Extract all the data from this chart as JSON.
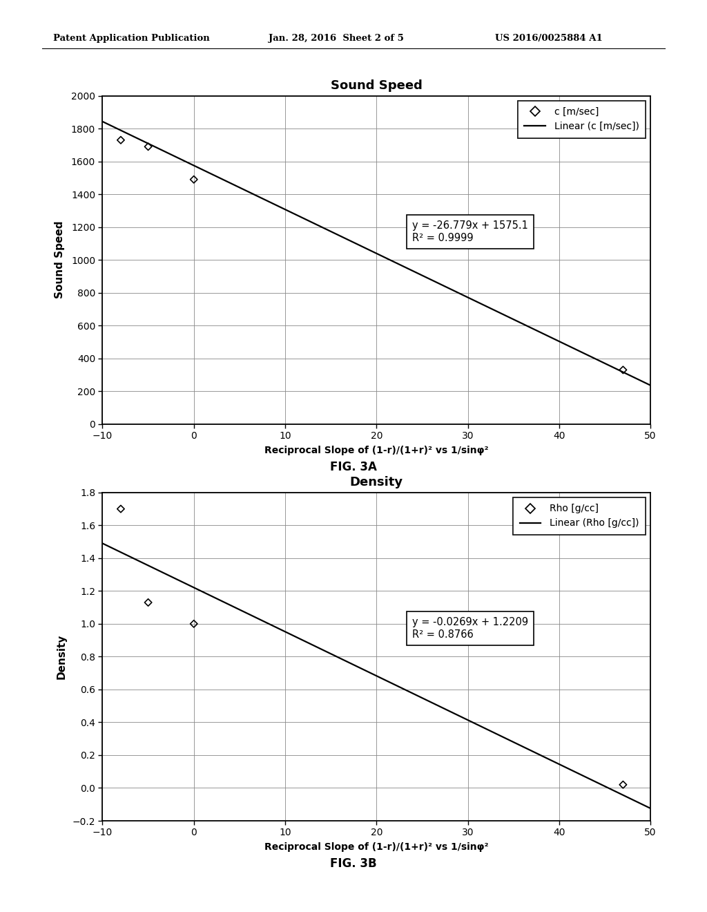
{
  "header_left": "Patent Application Publication",
  "header_mid": "Jan. 28, 2016  Sheet 2 of 5",
  "header_right": "US 2016/0025884 A1",
  "fig3a": {
    "title": "Sound Speed",
    "ylabel": "Sound Speed",
    "xlabel": "Reciprocal Slope of (1-r)/(1+r)² vs 1/sinφ²",
    "xlim": [
      -10,
      50
    ],
    "ylim": [
      0,
      2000
    ],
    "yticks": [
      0,
      200,
      400,
      600,
      800,
      1000,
      1200,
      1400,
      1600,
      1800,
      2000
    ],
    "xticks": [
      -10,
      0,
      10,
      20,
      30,
      40,
      50
    ],
    "scatter_x": [
      -8,
      -5,
      0,
      47
    ],
    "scatter_y": [
      1730,
      1690,
      1490,
      330
    ],
    "line_slope": -26.779,
    "line_intercept": 1575.1,
    "legend_label_scatter": "c [m/sec]",
    "legend_label_line": "Linear (c [m/sec])",
    "equation": "y = -26.779x + 1575.1",
    "r2": "R² = 0.9999",
    "caption": "FIG. 3A"
  },
  "fig3b": {
    "title": "Density",
    "ylabel": "Density",
    "xlabel": "Reciprocal Slope of (1-r)/(1+r)² vs 1/sinφ²",
    "xlim": [
      -10,
      50
    ],
    "ylim": [
      -0.2,
      1.8
    ],
    "yticks": [
      -0.2,
      0.0,
      0.2,
      0.4,
      0.6,
      0.8,
      1.0,
      1.2,
      1.4,
      1.6,
      1.8
    ],
    "xticks": [
      -10,
      0,
      10,
      20,
      30,
      40,
      50
    ],
    "scatter_x": [
      -8,
      -5,
      0,
      47
    ],
    "scatter_y": [
      1.7,
      1.13,
      1.0,
      0.02
    ],
    "line_slope": -0.0269,
    "line_intercept": 1.2209,
    "legend_label_scatter": "Rho [g/cc]",
    "legend_label_line": "Linear (Rho [g/cc])",
    "equation": "y = -0.0269x + 1.2209",
    "r2": "R² = 0.8766",
    "caption": "FIG. 3B"
  }
}
